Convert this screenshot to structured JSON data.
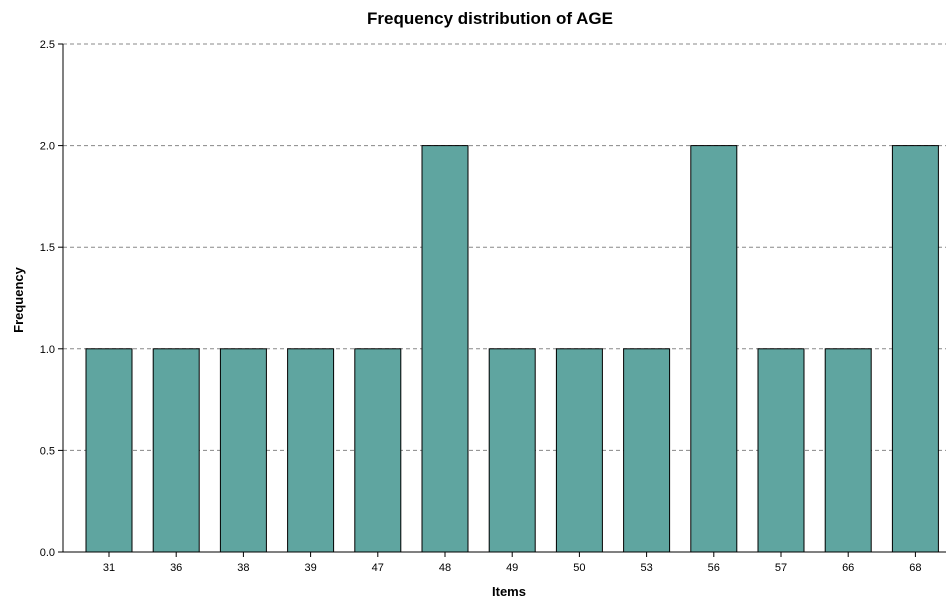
{
  "chart_data": {
    "type": "bar",
    "title": "Frequency distribution of AGE",
    "xlabel": "Items",
    "ylabel": "Frequency",
    "categories": [
      "31",
      "36",
      "38",
      "39",
      "47",
      "48",
      "49",
      "50",
      "53",
      "56",
      "57",
      "66",
      "68"
    ],
    "values": [
      1,
      1,
      1,
      1,
      1,
      2,
      1,
      1,
      1,
      2,
      1,
      1,
      2
    ],
    "ylim": [
      0,
      2.5
    ],
    "yticks": [
      "0.0",
      "0.5",
      "1.0",
      "1.5",
      "2.0",
      "2.5"
    ],
    "grid": true,
    "bar_color": "#5fa5a0",
    "bar_edge_color": "#000000",
    "grid_color": "#888888"
  }
}
